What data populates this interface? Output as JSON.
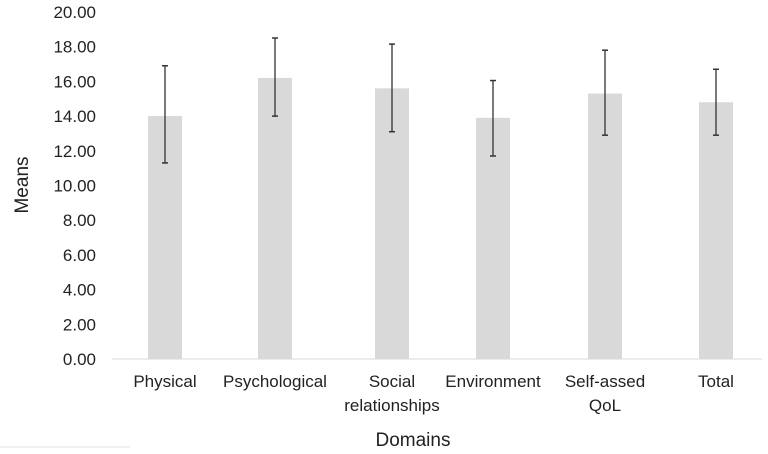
{
  "chart_data": {
    "type": "bar",
    "title": "",
    "xlabel": "Domains",
    "ylabel": "Means",
    "ylim": [
      0,
      20
    ],
    "yticks": [
      "0.00",
      "2.00",
      "4.00",
      "6.00",
      "8.00",
      "10.00",
      "12.00",
      "14.00",
      "16.00",
      "18.00",
      "20.00"
    ],
    "categories": [
      [
        "Physical"
      ],
      [
        "Psychological"
      ],
      [
        "Social",
        "relationships"
      ],
      [
        "Environment"
      ],
      [
        "Self-assed",
        "QoL"
      ],
      [
        "Total"
      ]
    ],
    "values": [
      14.0,
      16.2,
      15.6,
      13.9,
      15.3,
      14.8
    ],
    "error_upper": [
      16.9,
      18.5,
      18.15,
      16.05,
      17.8,
      16.7
    ],
    "error_lower": [
      11.3,
      14.0,
      13.1,
      11.7,
      12.9,
      12.9
    ],
    "grid": false,
    "colors": {
      "bar": "#d9d9d9",
      "error": "#333333",
      "axis": "#d9d9d9"
    }
  }
}
